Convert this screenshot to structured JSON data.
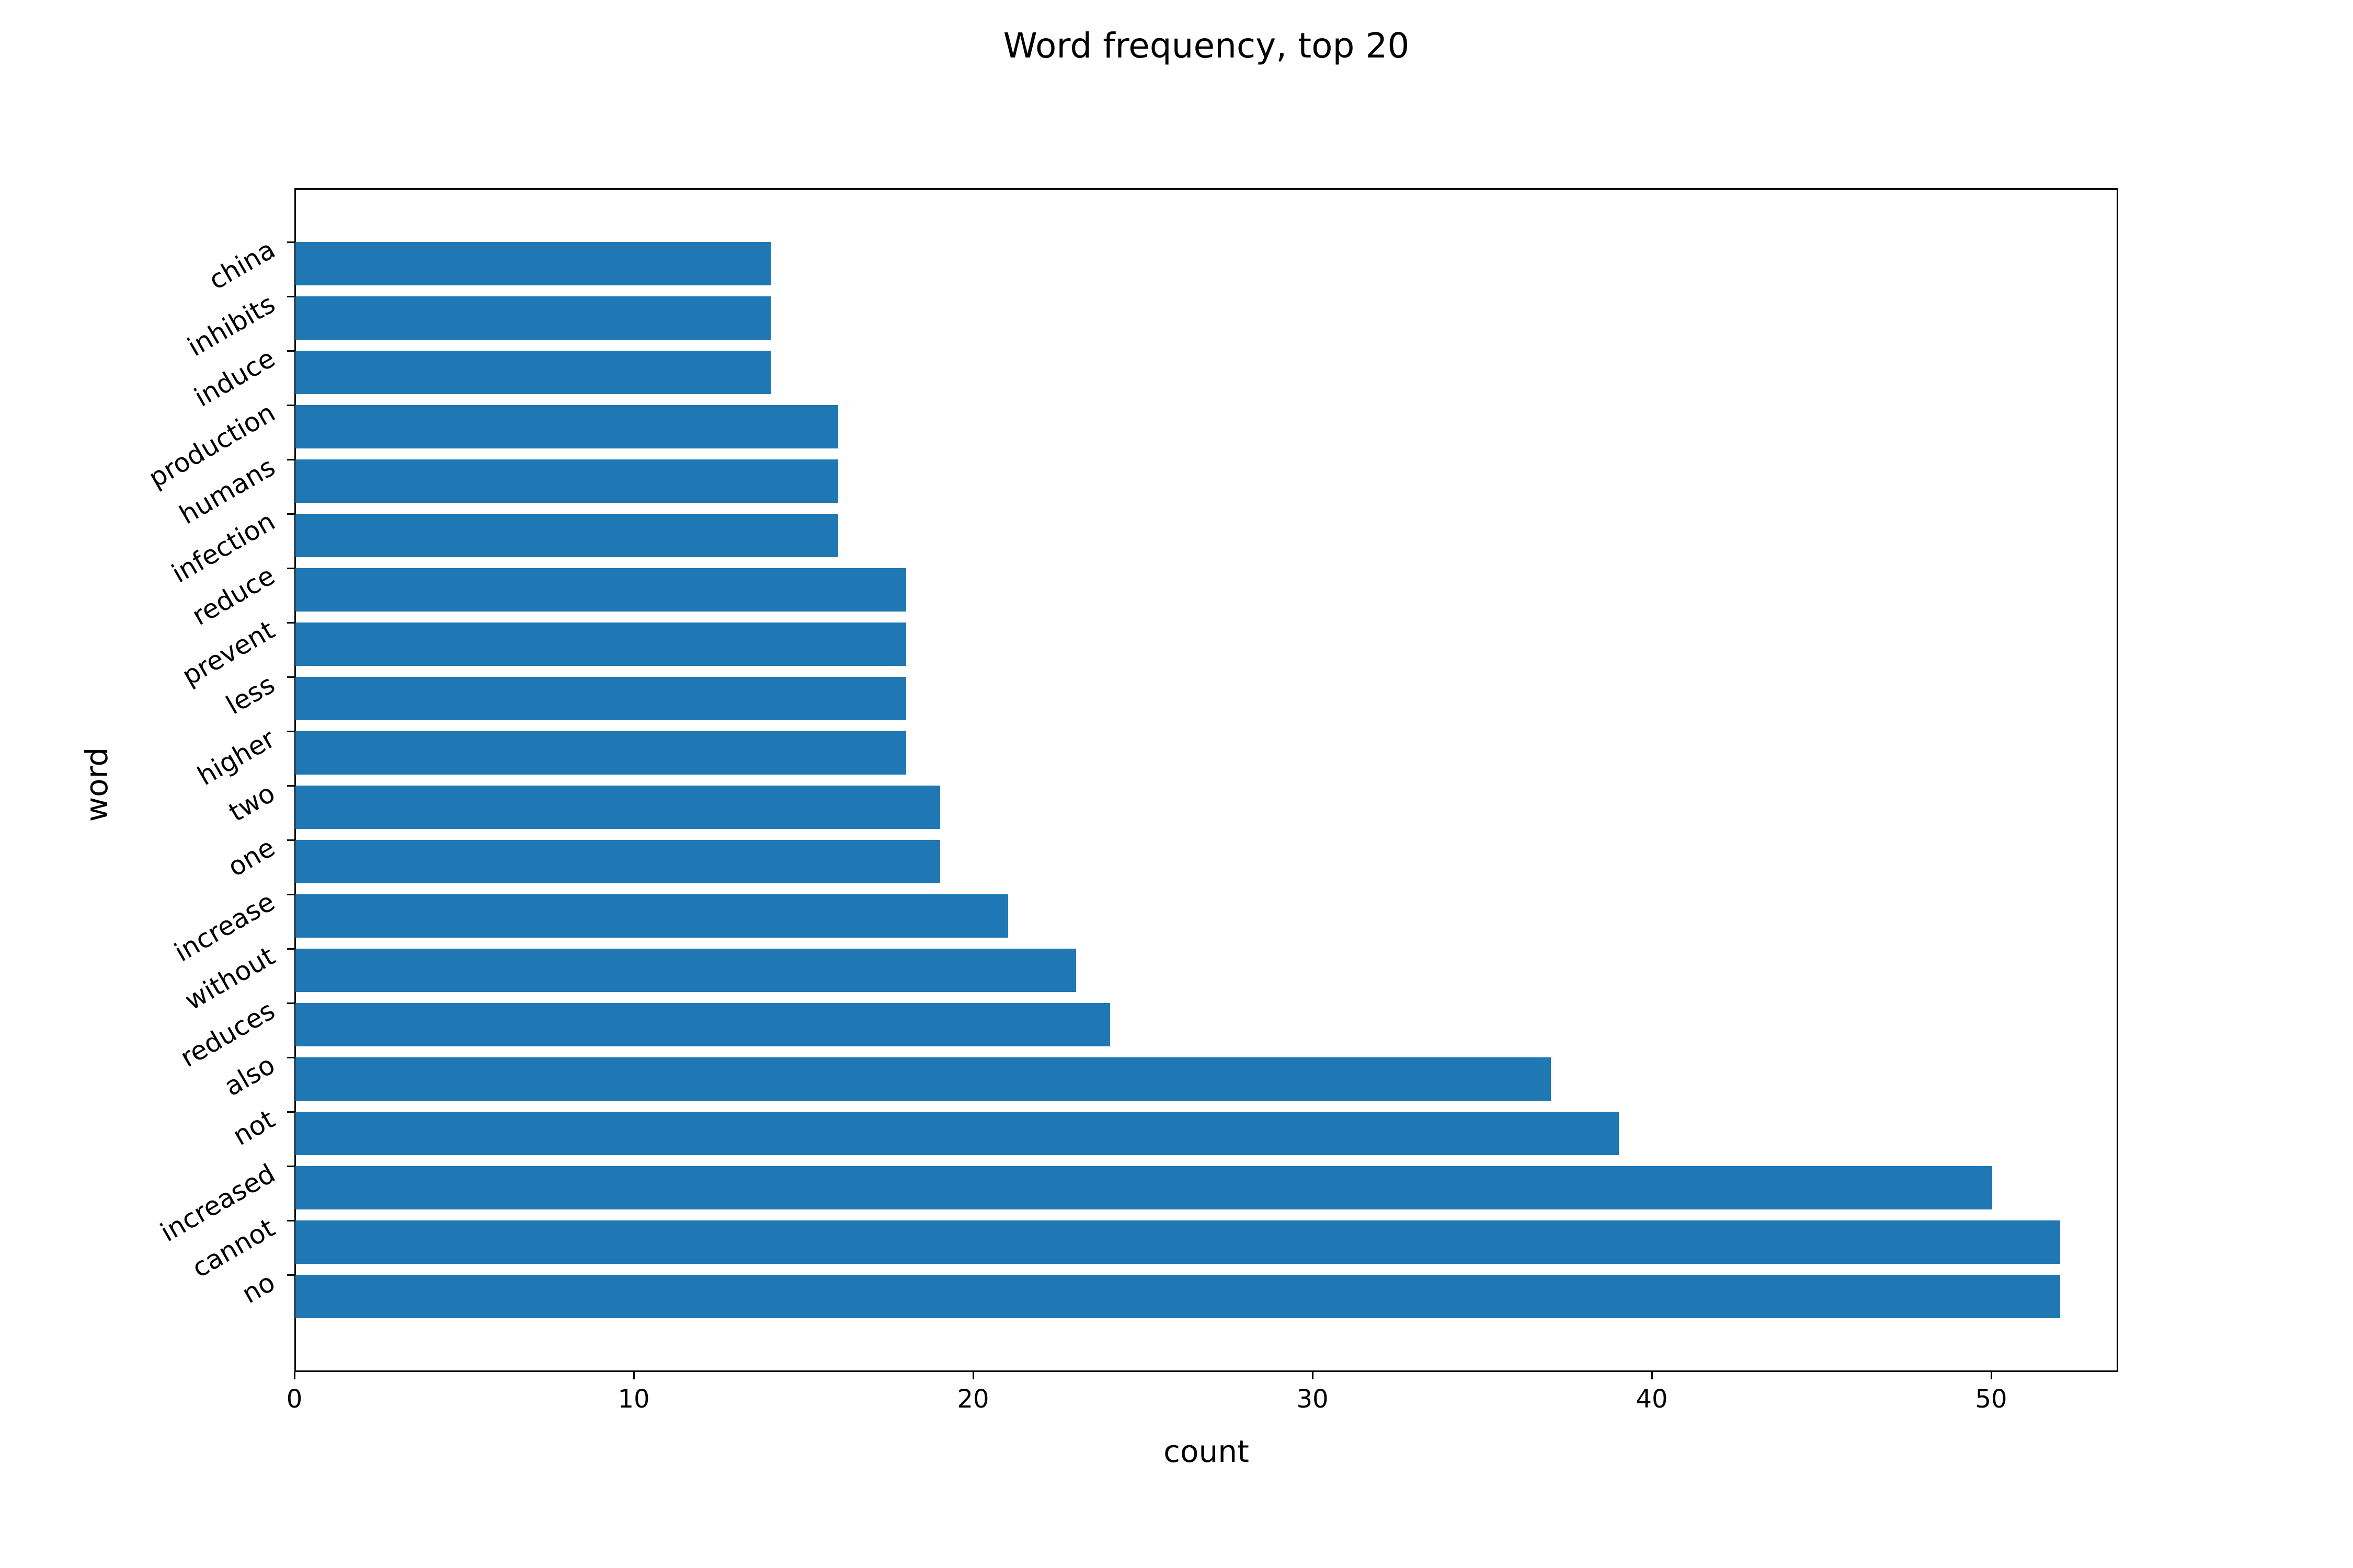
{
  "chart_data": {
    "type": "bar",
    "orientation": "horizontal",
    "title": "Word frequency, top 20",
    "xlabel": "count",
    "ylabel": "word",
    "categories": [
      "china",
      "inhibits",
      "induce",
      "production",
      "humans",
      "infection",
      "reduce",
      "prevent",
      "less",
      "higher",
      "two",
      "one",
      "increase",
      "without",
      "reduces",
      "also",
      "not",
      "increased",
      "cannot",
      "no"
    ],
    "values": [
      14,
      14,
      14,
      16,
      16,
      16,
      18,
      18,
      18,
      18,
      19,
      19,
      21,
      23,
      24,
      37,
      39,
      50,
      52,
      52
    ],
    "x_ticks": [
      0,
      10,
      20,
      30,
      40,
      50
    ],
    "xlim": [
      0,
      53.7
    ],
    "bar_color": "#1f77b4",
    "axis_color": "#000000",
    "ytick_rotation_deg": 30,
    "grid": false,
    "legend_visible": false
  }
}
